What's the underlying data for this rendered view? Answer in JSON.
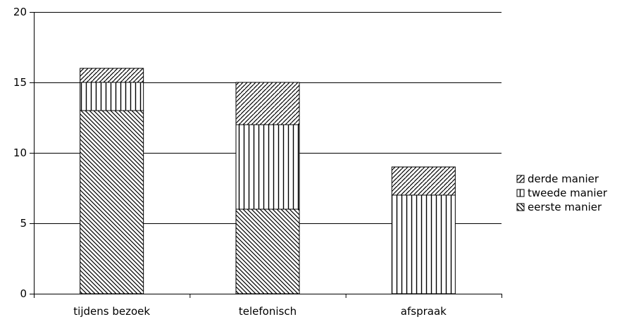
{
  "chart_data": {
    "type": "bar",
    "stacked": true,
    "categories": [
      "tijdens bezoek",
      "telefonisch",
      "afspraak"
    ],
    "series": [
      {
        "name": "eerste manier",
        "values": [
          13,
          6,
          0
        ],
        "pattern": "diagonal-down"
      },
      {
        "name": "tweede manier",
        "values": [
          2,
          6,
          7
        ],
        "pattern": "vertical"
      },
      {
        "name": "derde manier",
        "values": [
          1,
          3,
          2
        ],
        "pattern": "diagonal-up"
      }
    ],
    "title": "",
    "xlabel": "",
    "ylabel": "",
    "ylim": [
      0,
      20
    ],
    "yticks": [
      "0",
      "5",
      "10",
      "15",
      "20"
    ],
    "grid": true,
    "legend_placement": "right",
    "legend_order": [
      "derde manier",
      "tweede manier",
      "eerste manier"
    ],
    "colors": {
      "stroke": "#000000",
      "background": "#ffffff"
    }
  }
}
